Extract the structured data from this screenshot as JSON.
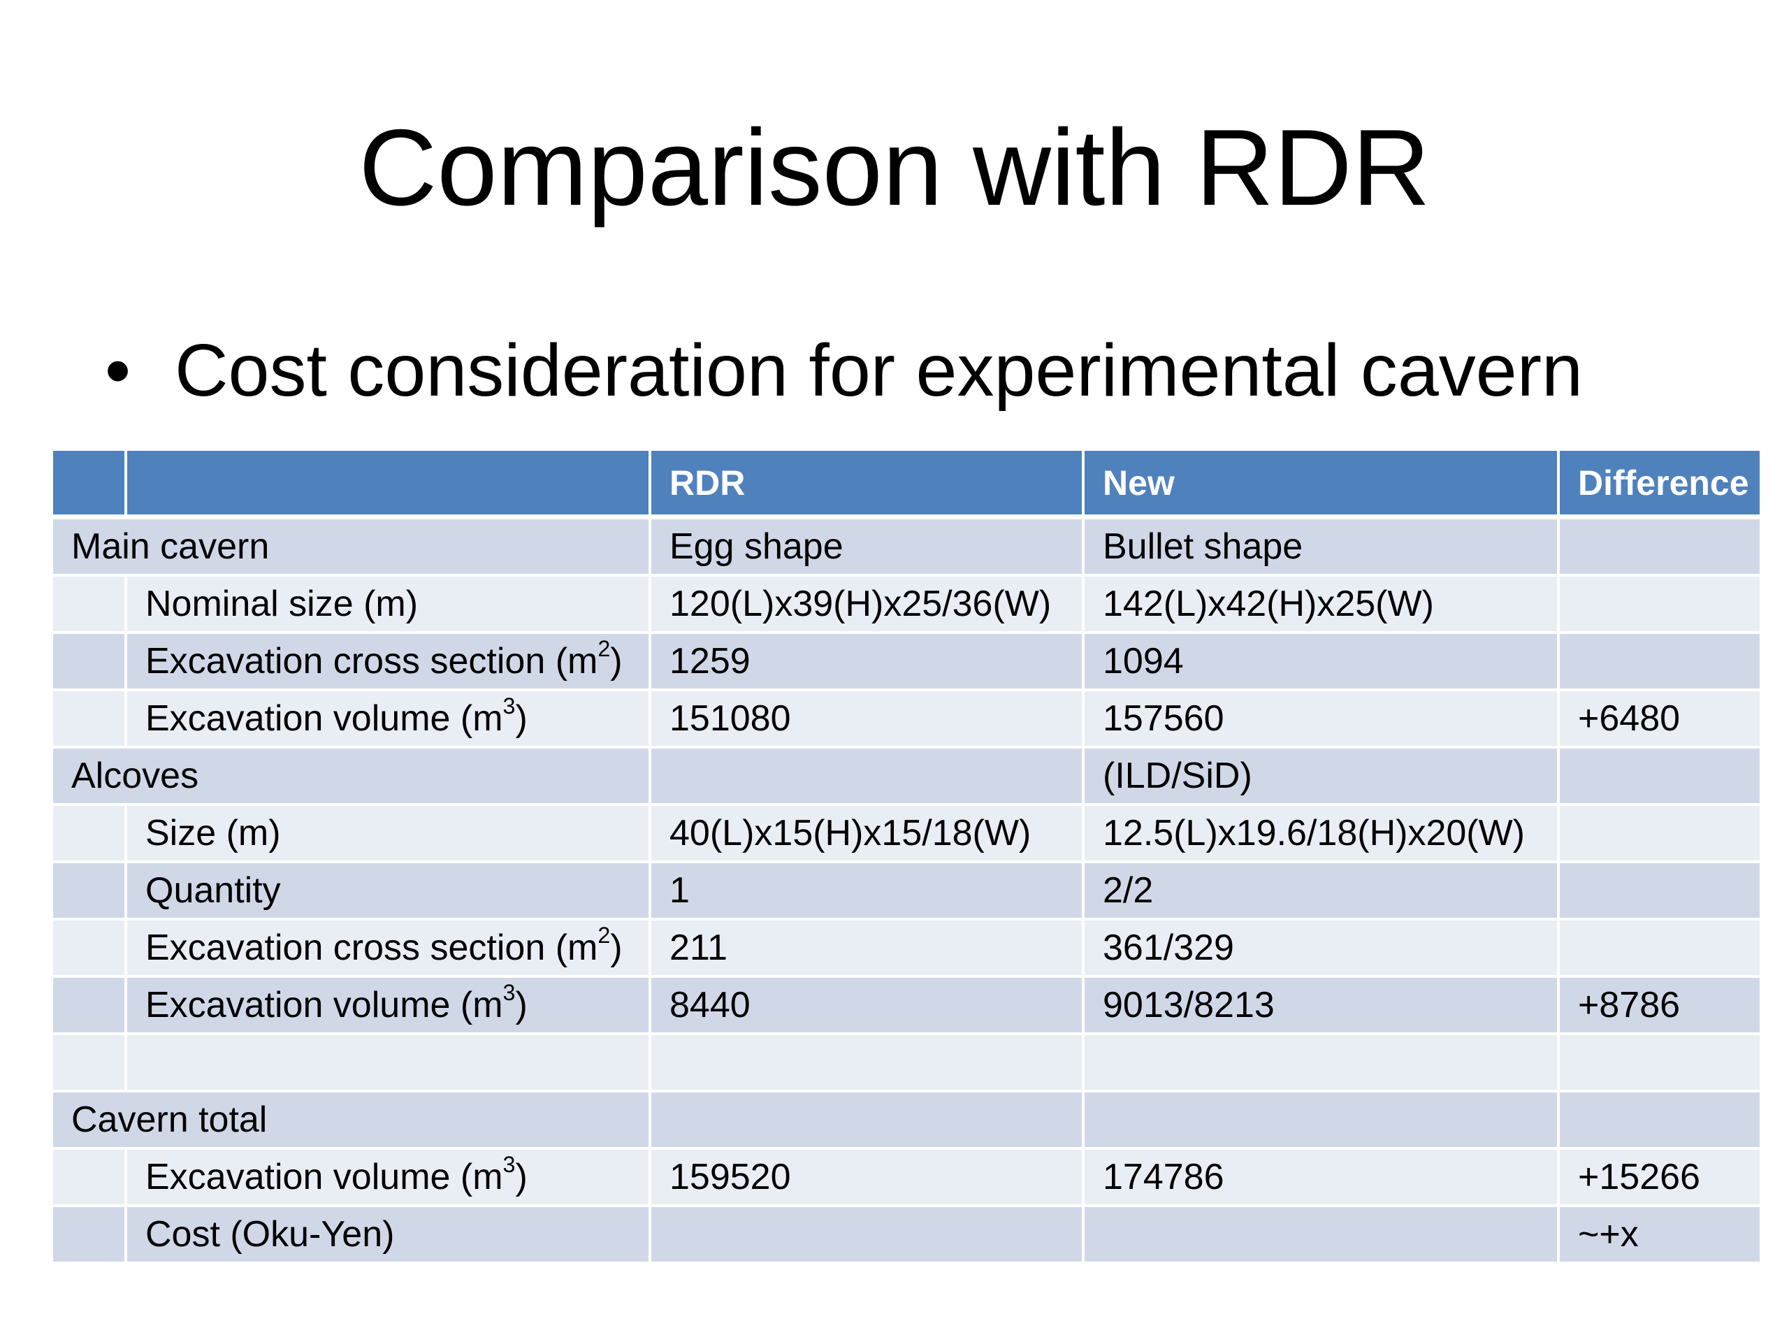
{
  "slide": {
    "title": "Comparison with RDR",
    "bullet": "Cost consideration for experimental cavern"
  },
  "table": {
    "headers": [
      "",
      "",
      "RDR",
      "New",
      "Difference"
    ],
    "rows": [
      {
        "group": "Main cavern",
        "rdr": "Egg shape",
        "new": "Bullet shape",
        "diff": ""
      },
      {
        "label": "Nominal size (m)",
        "rdr": "120(L)x39(H)x25/36(W)",
        "new": "142(L)x42(H)x25(W)",
        "diff": ""
      },
      {
        "label": "Excavation cross section (m",
        "sup": "2",
        "rdr": "1259",
        "new": "1094",
        "diff": ""
      },
      {
        "label": "Excavation volume (m",
        "sup": "3",
        "rdr": "151080",
        "new": "157560",
        "diff": "+6480"
      },
      {
        "group": "Alcoves",
        "rdr": "",
        "new": "(ILD/SiD)",
        "diff": ""
      },
      {
        "label": "Size (m)",
        "rdr": "40(L)x15(H)x15/18(W)",
        "new": "12.5(L)x19.6/18(H)x20(W)",
        "diff": ""
      },
      {
        "label": "Quantity",
        "rdr": "1",
        "new": "2/2",
        "diff": ""
      },
      {
        "label": "Excavation cross section (m",
        "sup": "2",
        "rdr": "211",
        "new": "361/329",
        "diff": ""
      },
      {
        "label": "Excavation volume (m",
        "sup": "3",
        "rdr": "8440",
        "new": "9013/8213",
        "diff": "+8786"
      },
      {
        "label": "",
        "rdr": "",
        "new": "",
        "diff": ""
      },
      {
        "group": "Cavern total",
        "rdr": "",
        "new": "",
        "diff": ""
      },
      {
        "label": "Excavation volume (m",
        "sup": "3",
        "rdr": "159520",
        "new": "174786",
        "diff": "+15266"
      },
      {
        "label": "Cost (Oku-Yen)",
        "rdr": "",
        "new": "",
        "diff": "~+x"
      }
    ]
  },
  "colors": {
    "header": "#4f81bd",
    "row_dark": "#d0d8e8",
    "row_light": "#e9edf4"
  }
}
